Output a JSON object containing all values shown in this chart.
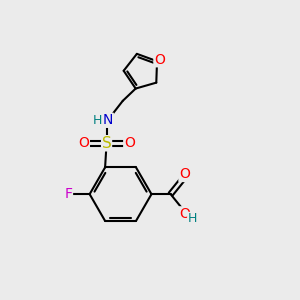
{
  "background_color": "#ebebeb",
  "bond_color": "#000000",
  "bond_width": 1.5,
  "atom_colors": {
    "O": "#ff0000",
    "N": "#0000cc",
    "S": "#bbbb00",
    "F": "#cc00cc",
    "H_teal": "#008080",
    "H_red": "#ff0000",
    "C": "#000000"
  },
  "font_size_atoms": 10,
  "font_size_H": 9
}
